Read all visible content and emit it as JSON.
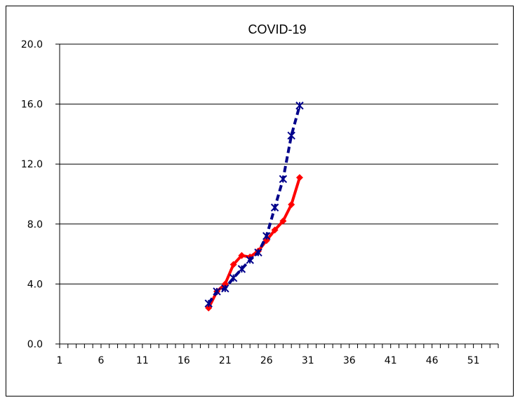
{
  "chart_data": {
    "type": "line",
    "title": "COVID-19",
    "xlabel": "",
    "ylabel": "",
    "xlim": [
      1,
      54
    ],
    "ylim": [
      0,
      20
    ],
    "x_ticks": [
      "1",
      "6",
      "11",
      "16",
      "21",
      "26",
      "31",
      "36",
      "41",
      "46",
      "51"
    ],
    "y_ticks": [
      "0.0",
      "4.0",
      "8.0",
      "12.0",
      "16.0",
      "20.0"
    ],
    "grid": "horizontal",
    "series": [
      {
        "color": "#ff0000",
        "marker": "diamond",
        "line_style": "solid",
        "x": [
          19,
          20,
          21,
          22,
          23,
          24,
          25,
          26,
          27,
          28,
          29,
          30
        ],
        "y": [
          2.4,
          3.5,
          4.0,
          5.3,
          5.9,
          5.8,
          6.2,
          6.9,
          7.6,
          8.2,
          9.3,
          11.1
        ]
      },
      {
        "color": "#00008b",
        "marker": "asterisk",
        "line_style": "dashed",
        "x": [
          19,
          20,
          21,
          22,
          23,
          24,
          25,
          26,
          27,
          28,
          29,
          30
        ],
        "y": [
          2.7,
          3.5,
          3.7,
          4.4,
          5.0,
          5.6,
          6.1,
          7.2,
          9.1,
          11.0,
          13.9,
          15.9
        ]
      }
    ]
  }
}
